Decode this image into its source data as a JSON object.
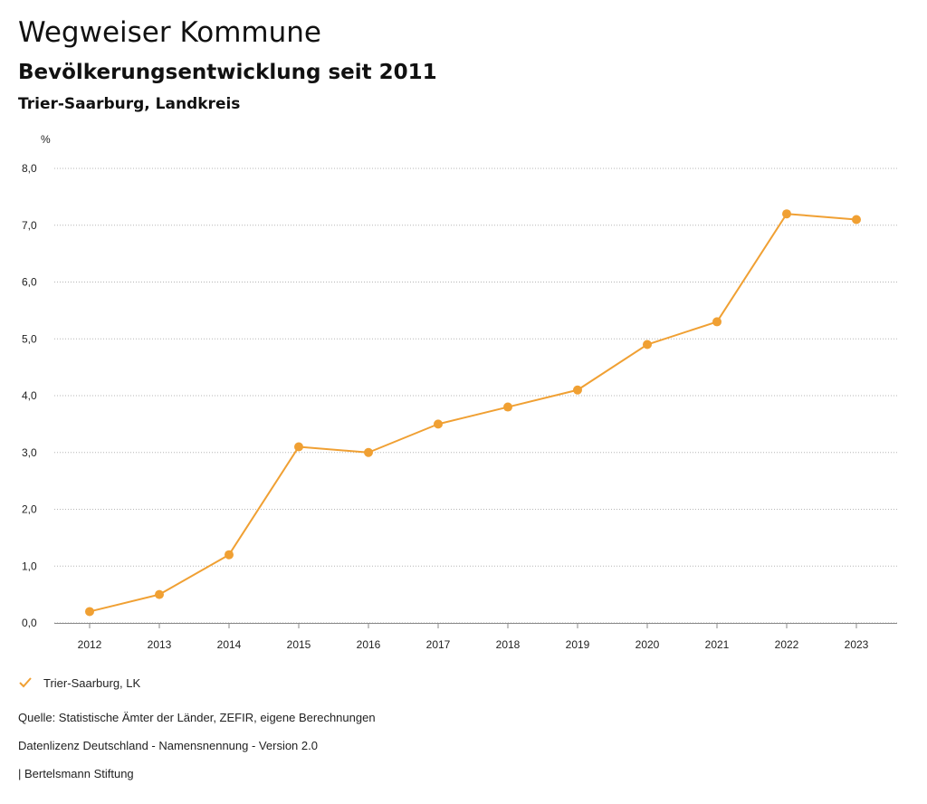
{
  "header": {
    "title": "Wegweiser Kommune",
    "subtitle": "Bevölkerungsentwicklung seit 2011",
    "region": "Trier-Saarburg, Landkreis"
  },
  "legend": {
    "label": "Trier-Saarburg, LK"
  },
  "footer": {
    "source": "Quelle: Statistische Ämter der Länder, ZEFIR, eigene Berechnungen",
    "license": "Datenlizenz Deutschland - Namensnennung - Version 2.0",
    "publisher": "| Bertelsmann Stiftung"
  },
  "colors": {
    "series": "#f0a033",
    "grid": "#b5b5b5",
    "axis": "#888888"
  },
  "chart_data": {
    "type": "line",
    "title": "Bevölkerungsentwicklung seit 2011",
    "xlabel": "",
    "ylabel": "%",
    "ylim": [
      0,
      8
    ],
    "yticks": [
      "0,0",
      "1,0",
      "2,0",
      "3,0",
      "4,0",
      "5,0",
      "6,0",
      "7,0",
      "8,0"
    ],
    "grid": true,
    "legend_position": "bottom-left",
    "categories": [
      "2012",
      "2013",
      "2014",
      "2015",
      "2016",
      "2017",
      "2018",
      "2019",
      "2020",
      "2021",
      "2022",
      "2023"
    ],
    "series": [
      {
        "name": "Trier-Saarburg, LK",
        "values": [
          0.2,
          0.5,
          1.2,
          3.1,
          3.0,
          3.5,
          3.8,
          4.1,
          4.9,
          5.3,
          7.2,
          7.1
        ]
      }
    ]
  }
}
